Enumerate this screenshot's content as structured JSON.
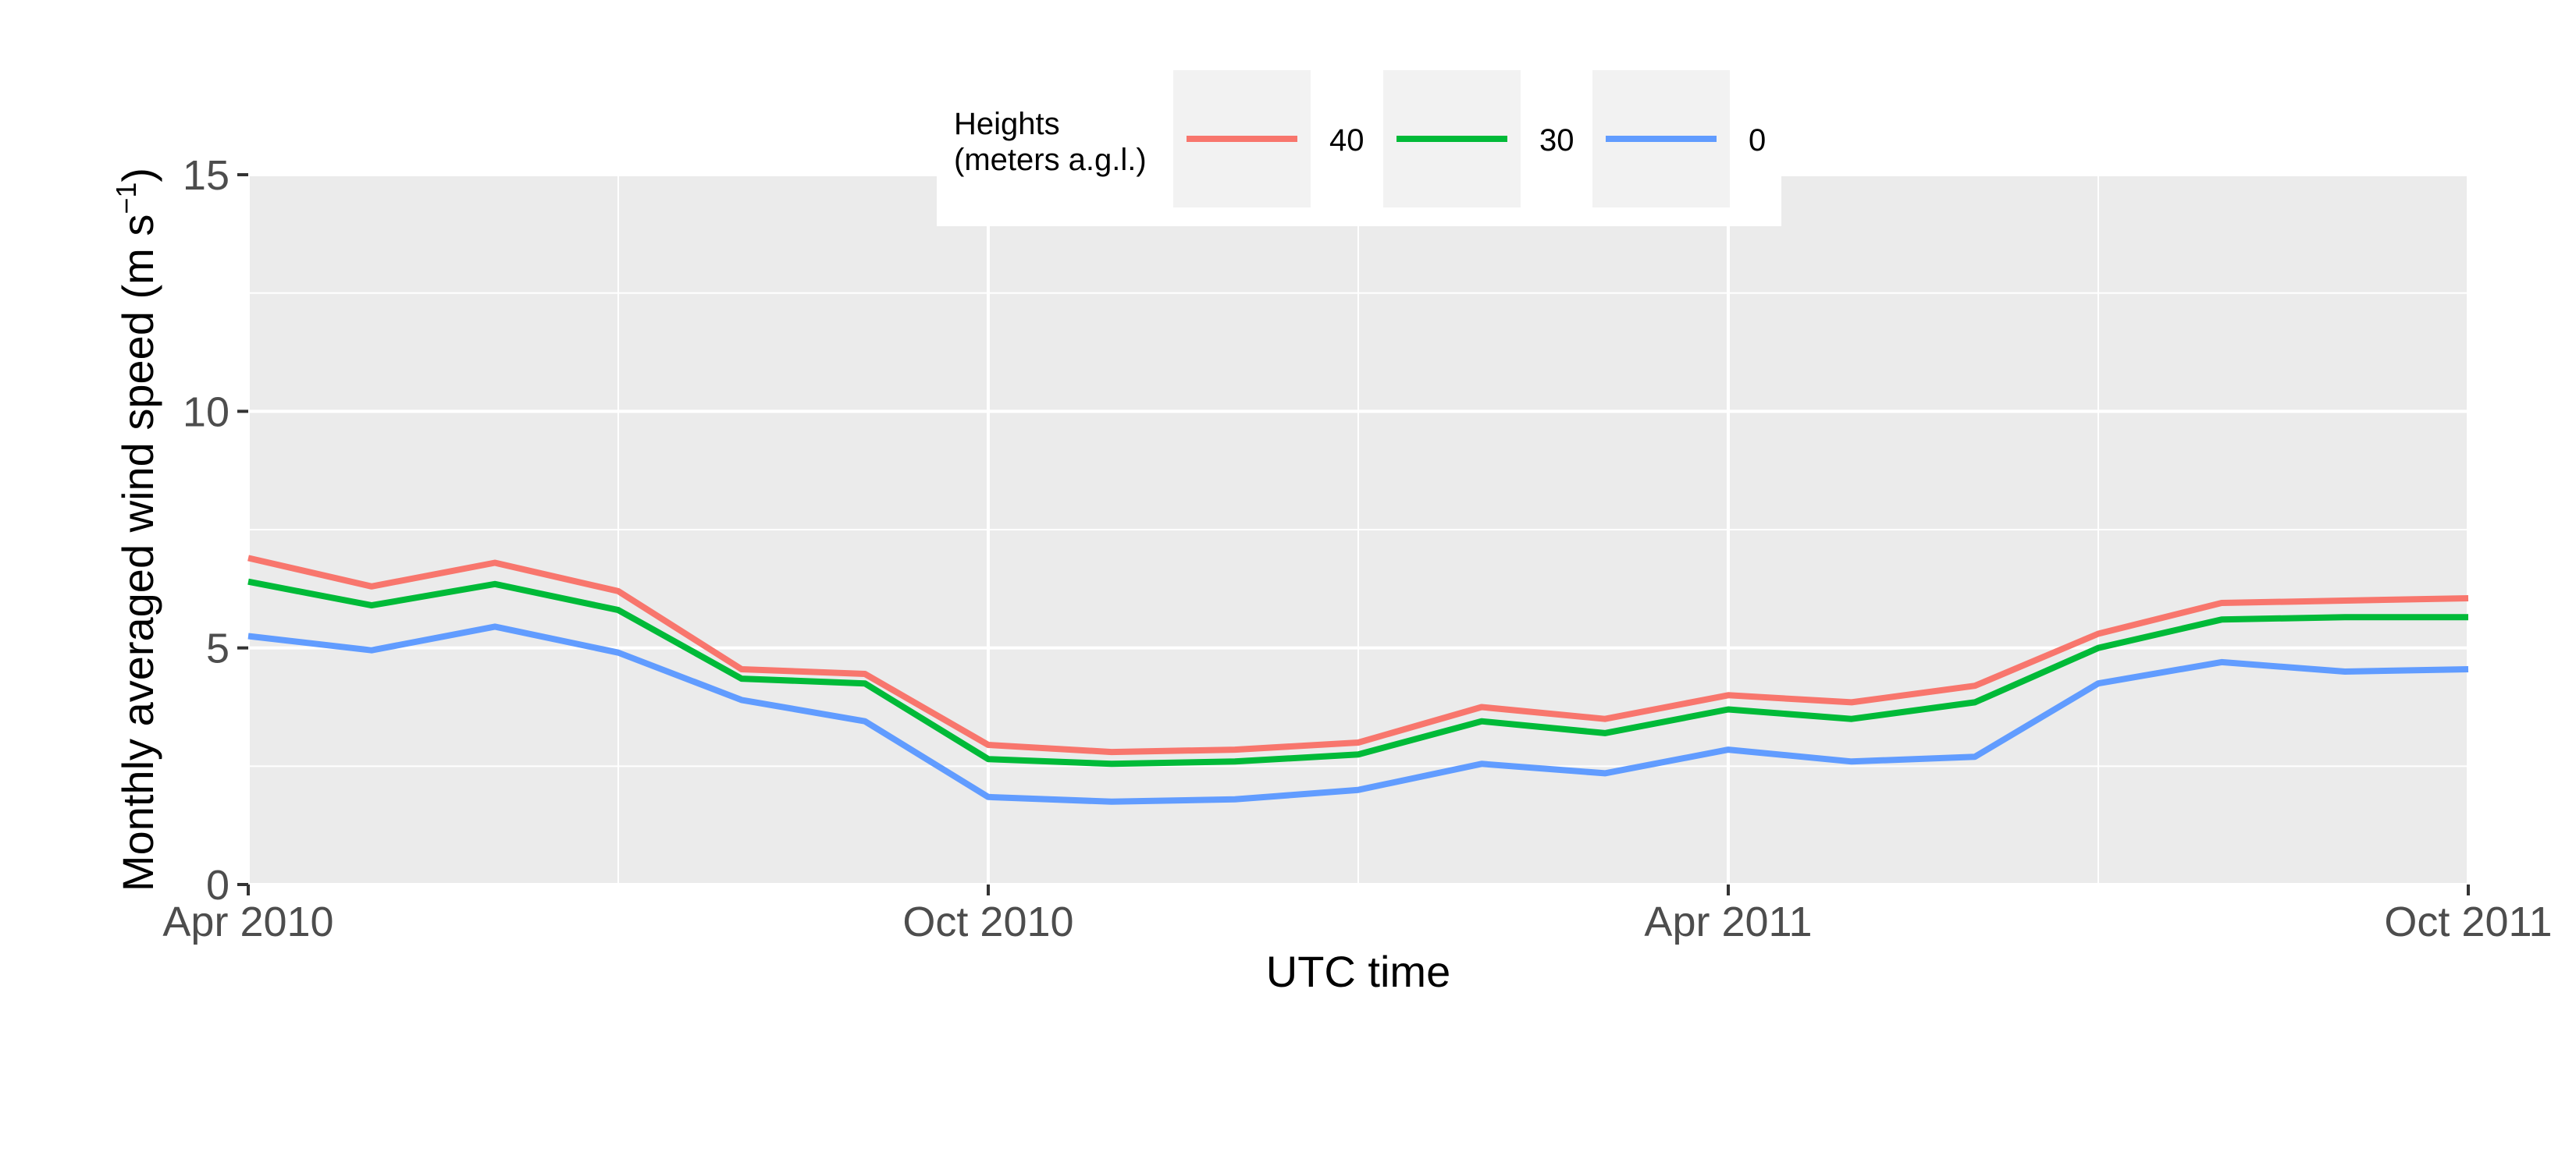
{
  "chart_data": {
    "type": "line",
    "title": "",
    "xlabel": "UTC time",
    "ylabel": "Monthly averaged wind speed (m s",
    "ylabel_unit_exp": "−1",
    "ylabel_close": ")",
    "ylim": [
      0,
      15
    ],
    "y_ticks": [
      0,
      5,
      10,
      15
    ],
    "y_minor_ticks": [
      2.5,
      7.5,
      12.5
    ],
    "x_range": [
      0,
      18
    ],
    "x_major_ticks": [
      {
        "x": 0,
        "label": "Apr 2010"
      },
      {
        "x": 6,
        "label": "Oct 2010"
      },
      {
        "x": 12,
        "label": "Apr 2011"
      },
      {
        "x": 18,
        "label": "Oct 2011"
      }
    ],
    "x_minor_ticks": [
      3,
      9,
      15
    ],
    "x": [
      0,
      1,
      2,
      3,
      4,
      5,
      6,
      7,
      8,
      9,
      10,
      11,
      12,
      13,
      14,
      15,
      16,
      17,
      18
    ],
    "series": [
      {
        "name": "40",
        "color": "#F8766D",
        "values": [
          6.9,
          6.3,
          6.8,
          6.2,
          4.55,
          4.45,
          2.95,
          2.8,
          2.85,
          3.0,
          3.75,
          3.5,
          4.0,
          3.85,
          4.2,
          5.3,
          5.95,
          6.0,
          6.05
        ]
      },
      {
        "name": "30",
        "color": "#00BA38",
        "values": [
          6.4,
          5.9,
          6.35,
          5.8,
          4.35,
          4.25,
          2.65,
          2.55,
          2.6,
          2.75,
          3.45,
          3.2,
          3.7,
          3.5,
          3.85,
          5.0,
          5.6,
          5.65,
          5.65
        ]
      },
      {
        "name": "0",
        "color": "#619CFF",
        "values": [
          5.25,
          4.95,
          5.45,
          4.9,
          3.9,
          3.45,
          1.85,
          1.75,
          1.8,
          2.0,
          2.55,
          2.35,
          2.85,
          2.6,
          2.7,
          4.25,
          4.7,
          4.5,
          4.55
        ]
      }
    ],
    "legend": {
      "title_line1": "Heights",
      "title_line2": "(meters a.g.l.)",
      "placement": "top-center"
    },
    "grid": true,
    "panel_color": "#EBEBEB"
  }
}
